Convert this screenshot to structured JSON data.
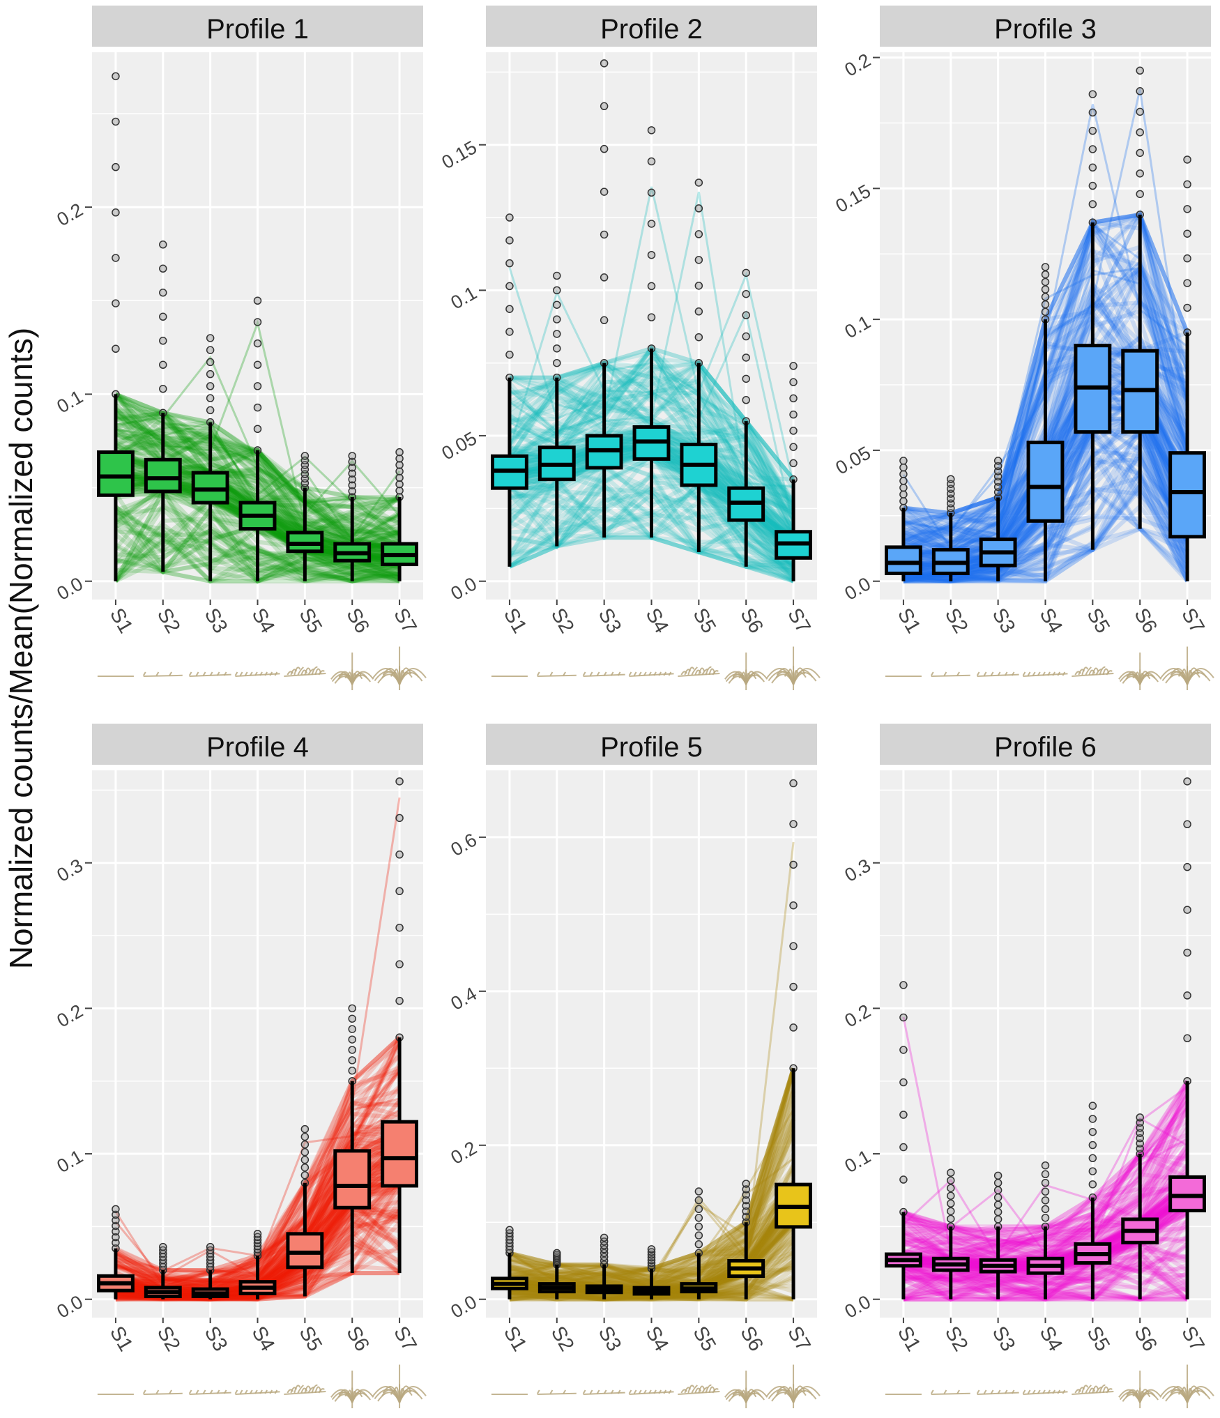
{
  "figure": {
    "ylabel": "Normalized counts/Mean(Normalized counts)",
    "categories": [
      "S1",
      "S2",
      "S3",
      "S4",
      "S5",
      "S6",
      "S7"
    ]
  },
  "chart_data": [
    {
      "type": "box",
      "title": "Profile 1",
      "color": "#0a9a0a",
      "box_fill": "#2ec44a",
      "ylim": [
        0,
        0.28
      ],
      "yticks": [
        0.0,
        0.1,
        0.2
      ],
      "ytick_labels": [
        "0.0",
        "0.1",
        "0.2"
      ],
      "categories": [
        "S1",
        "S2",
        "S3",
        "S4",
        "S5",
        "S6",
        "S7"
      ],
      "median": [
        0.056,
        0.055,
        0.049,
        0.035,
        0.02,
        0.015,
        0.014
      ],
      "q1": [
        0.046,
        0.048,
        0.042,
        0.028,
        0.016,
        0.011,
        0.009
      ],
      "q3": [
        0.069,
        0.065,
        0.058,
        0.042,
        0.026,
        0.02,
        0.02
      ],
      "whisker_low": [
        0.0,
        0.005,
        0.0,
        0.0,
        0.0,
        0.0,
        0.0
      ],
      "whisker_high": [
        0.1,
        0.09,
        0.085,
        0.07,
        0.05,
        0.045,
        0.045
      ],
      "max_outlier": [
        0.27,
        0.18,
        0.13,
        0.15,
        0.067,
        0.067,
        0.069
      ]
    },
    {
      "type": "box",
      "title": "Profile 2",
      "color": "#16bcbc",
      "box_fill": "#1ed2d2",
      "ylim": [
        0,
        0.18
      ],
      "yticks": [
        0.0,
        0.05,
        0.1,
        0.15
      ],
      "ytick_labels": [
        "0.0",
        "0.05",
        "0.1",
        "0.15"
      ],
      "categories": [
        "S1",
        "S2",
        "S3",
        "S4",
        "S5",
        "S6",
        "S7"
      ],
      "median": [
        0.038,
        0.04,
        0.045,
        0.048,
        0.04,
        0.027,
        0.013
      ],
      "q1": [
        0.032,
        0.035,
        0.039,
        0.042,
        0.033,
        0.021,
        0.008
      ],
      "q3": [
        0.043,
        0.046,
        0.05,
        0.053,
        0.047,
        0.032,
        0.017
      ],
      "whisker_low": [
        0.005,
        0.012,
        0.015,
        0.015,
        0.01,
        0.005,
        0.0
      ],
      "whisker_high": [
        0.07,
        0.07,
        0.075,
        0.08,
        0.075,
        0.055,
        0.035
      ],
      "max_outlier": [
        0.125,
        0.105,
        0.178,
        0.155,
        0.137,
        0.106,
        0.074
      ]
    },
    {
      "type": "box",
      "title": "Profile 3",
      "color": "#1a6ff0",
      "box_fill": "#5aa6f8",
      "ylim": [
        0,
        0.2
      ],
      "yticks": [
        0.0,
        0.05,
        0.1,
        0.15,
        0.2
      ],
      "ytick_labels": [
        "0.0",
        "0.05",
        "0.1",
        "0.15",
        "0.2"
      ],
      "categories": [
        "S1",
        "S2",
        "S3",
        "S4",
        "S5",
        "S6",
        "S7"
      ],
      "median": [
        0.007,
        0.007,
        0.011,
        0.036,
        0.074,
        0.073,
        0.034
      ],
      "q1": [
        0.003,
        0.003,
        0.006,
        0.023,
        0.057,
        0.057,
        0.017
      ],
      "q3": [
        0.013,
        0.012,
        0.016,
        0.053,
        0.09,
        0.088,
        0.049
      ],
      "whisker_low": [
        0.0,
        0.0,
        0.0,
        0.0,
        0.012,
        0.02,
        0.0
      ],
      "whisker_high": [
        0.028,
        0.026,
        0.032,
        0.1,
        0.137,
        0.14,
        0.095
      ],
      "max_outlier": [
        0.046,
        0.039,
        0.046,
        0.12,
        0.186,
        0.195,
        0.161
      ]
    },
    {
      "type": "box",
      "title": "Profile 4",
      "color": "#f01a08",
      "box_fill": "#f58070",
      "ylim": [
        0,
        0.36
      ],
      "yticks": [
        0.0,
        0.1,
        0.2,
        0.3
      ],
      "ytick_labels": [
        "0.0",
        "0.1",
        "0.2",
        "0.3"
      ],
      "categories": [
        "S1",
        "S2",
        "S3",
        "S4",
        "S5",
        "S6",
        "S7"
      ],
      "median": [
        0.011,
        0.005,
        0.004,
        0.008,
        0.032,
        0.078,
        0.097
      ],
      "q1": [
        0.006,
        0.002,
        0.002,
        0.004,
        0.022,
        0.063,
        0.078
      ],
      "q3": [
        0.016,
        0.008,
        0.007,
        0.012,
        0.045,
        0.102,
        0.122
      ],
      "whisker_low": [
        0.0,
        0.0,
        0.0,
        0.0,
        0.002,
        0.018,
        0.018
      ],
      "whisker_high": [
        0.035,
        0.02,
        0.02,
        0.03,
        0.08,
        0.15,
        0.18
      ],
      "max_outlier": [
        0.062,
        0.036,
        0.036,
        0.045,
        0.117,
        0.2,
        0.356
      ]
    },
    {
      "type": "box",
      "title": "Profile 5",
      "color": "#a8860a",
      "box_fill": "#e8c41a",
      "ylim": [
        0,
        0.68
      ],
      "yticks": [
        0.0,
        0.2,
        0.4,
        0.6
      ],
      "ytick_labels": [
        "0.0",
        "0.2",
        "0.4",
        "0.6"
      ],
      "categories": [
        "S1",
        "S2",
        "S3",
        "S4",
        "S5",
        "S6",
        "S7"
      ],
      "median": [
        0.02,
        0.015,
        0.013,
        0.011,
        0.014,
        0.04,
        0.12
      ],
      "q1": [
        0.014,
        0.01,
        0.009,
        0.007,
        0.01,
        0.03,
        0.094
      ],
      "q3": [
        0.027,
        0.02,
        0.017,
        0.015,
        0.02,
        0.05,
        0.149
      ],
      "whisker_low": [
        0.0,
        0.0,
        0.0,
        0.0,
        0.0,
        0.0,
        0.0
      ],
      "whisker_high": [
        0.06,
        0.045,
        0.045,
        0.04,
        0.06,
        0.1,
        0.3
      ],
      "max_outlier": [
        0.09,
        0.06,
        0.08,
        0.065,
        0.14,
        0.15,
        0.67
      ]
    },
    {
      "type": "box",
      "title": "Profile 6",
      "color": "#ee10d4",
      "box_fill": "#f36ad8",
      "ylim": [
        0,
        0.36
      ],
      "yticks": [
        0.0,
        0.1,
        0.2,
        0.3
      ],
      "ytick_labels": [
        "0.0",
        "0.1",
        "0.2",
        "0.3"
      ],
      "categories": [
        "S1",
        "S2",
        "S3",
        "S4",
        "S5",
        "S6",
        "S7"
      ],
      "median": [
        0.027,
        0.024,
        0.023,
        0.023,
        0.031,
        0.047,
        0.071
      ],
      "q1": [
        0.023,
        0.02,
        0.019,
        0.018,
        0.025,
        0.039,
        0.061
      ],
      "q3": [
        0.031,
        0.028,
        0.027,
        0.028,
        0.038,
        0.055,
        0.084
      ],
      "whisker_low": [
        0.0,
        0.0,
        0.0,
        0.0,
        0.0,
        0.0,
        0.0
      ],
      "whisker_high": [
        0.06,
        0.05,
        0.05,
        0.05,
        0.07,
        0.1,
        0.15
      ],
      "max_outlier": [
        0.216,
        0.087,
        0.085,
        0.092,
        0.133,
        0.125,
        0.356
      ]
    }
  ]
}
